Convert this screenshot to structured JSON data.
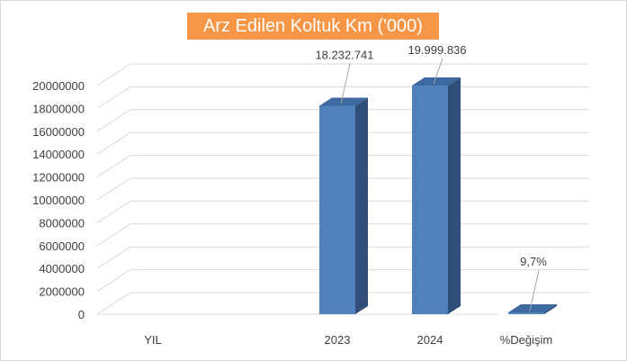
{
  "chart_data": {
    "type": "bar",
    "title": "Arz Edilen Koltuk Km ('000)",
    "categories": [
      "YIL",
      "2023",
      "2024",
      "%Değişim"
    ],
    "values": [
      0,
      18232741,
      19999836,
      9.7
    ],
    "data_labels": [
      "",
      "18.232.741",
      "19.999.836",
      "9,7%"
    ],
    "ylim": [
      0,
      20000000
    ],
    "yticks": [
      0,
      2000000,
      4000000,
      6000000,
      8000000,
      10000000,
      12000000,
      14000000,
      16000000,
      18000000,
      20000000
    ],
    "ytick_labels": [
      "0",
      "2000000",
      "4000000",
      "6000000",
      "8000000",
      "10000000",
      "12000000",
      "14000000",
      "16000000",
      "18000000",
      "20000000"
    ],
    "grid": true,
    "style": "3d-column",
    "colors": {
      "bar_front": "#4f81bd",
      "bar_side": "#2f4f78",
      "bar_top": "#3f6aa1",
      "title_bg": "#f79646",
      "title_text": "#ffffff",
      "grid": "#d9d9d9"
    }
  }
}
